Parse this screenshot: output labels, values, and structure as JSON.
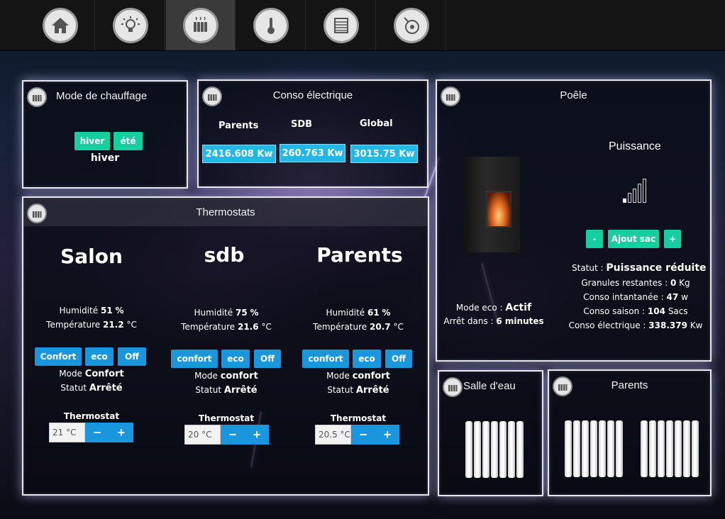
{
  "nav": {
    "items": [
      {
        "icon": "home-icon"
      },
      {
        "icon": "lightbulb-icon"
      },
      {
        "icon": "radiator-icon",
        "active": true
      },
      {
        "icon": "thermometer-icon"
      },
      {
        "icon": "shutter-icon"
      },
      {
        "icon": "disc-icon"
      }
    ]
  },
  "mode_chauffage": {
    "title": "Mode de chauffage",
    "btn_hiver": "hiver",
    "btn_ete": "été",
    "current": "hiver"
  },
  "conso": {
    "title": "Conso électrique",
    "cols": [
      {
        "label": "Parents",
        "value": "2416.608 Kw"
      },
      {
        "label": "SDB",
        "value": "260.763 Kw"
      },
      {
        "label": "Global",
        "value": "3015.75 Kw"
      }
    ]
  },
  "poele": {
    "title": "Poêle",
    "puissance_label": "Puissance",
    "btn_minus": "-",
    "btn_ajout": "Ajout sac",
    "btn_plus": "+",
    "statut_label": "Statut :",
    "statut_value": "Puissance réduite",
    "granules_label": "Granules restantes :",
    "granules_value": "0",
    "granules_unit": "Kg",
    "conso_inst_label": "Conso intantanée :",
    "conso_inst_value": "47",
    "conso_inst_unit": "w",
    "conso_saison_label": "Conso saison :",
    "conso_saison_value": "104",
    "conso_saison_unit": "Sacs",
    "conso_elec_label": "Conso électrique :",
    "conso_elec_value": "338.379",
    "conso_elec_unit": "Kw",
    "mode_eco_label": "Mode eco :",
    "mode_eco_value": "Actif",
    "arret_label": "Arrêt dans :",
    "arret_value": "6 minutes"
  },
  "thermostats": {
    "title": "Thermostats",
    "rooms": [
      {
        "name": "Salon",
        "humidite_label": "Humidité",
        "humidite": "51",
        "humidite_unit": "%",
        "temp_label": "Température",
        "temp": "21.2",
        "temp_unit": "°C",
        "btn_confort": "Confort",
        "btn_eco": "eco",
        "btn_off": "Off",
        "mode_label": "Mode",
        "mode": "Confort",
        "statut_label": "Statut",
        "statut": "Arrêté",
        "thermostat_label": "Thermostat",
        "setpoint": "21 °C"
      },
      {
        "name": "sdb",
        "humidite_label": "Humidité",
        "humidite": "75",
        "humidite_unit": "%",
        "temp_label": "Température",
        "temp": "21.6",
        "temp_unit": "°C",
        "btn_confort": "confort",
        "btn_eco": "eco",
        "btn_off": "Off",
        "mode_label": "Mode",
        "mode": "confort",
        "statut_label": "Statut",
        "statut": "Arrêté",
        "thermostat_label": "Thermostat",
        "setpoint": "20 °C"
      },
      {
        "name": "Parents",
        "humidite_label": "Humidité",
        "humidite": "61",
        "humidite_unit": "%",
        "temp_label": "Température",
        "temp": "20.7",
        "temp_unit": "°C",
        "btn_confort": "confort",
        "btn_eco": "eco",
        "btn_off": "Off",
        "mode_label": "Mode",
        "mode": "confort",
        "statut_label": "Statut",
        "statut": "Arrêté",
        "thermostat_label": "Thermostat",
        "setpoint": "20.5 °C"
      }
    ],
    "minus": "−",
    "plus": "+"
  },
  "salle_eau": {
    "title": "Salle d'eau"
  },
  "parents_rad": {
    "title": "Parents"
  }
}
